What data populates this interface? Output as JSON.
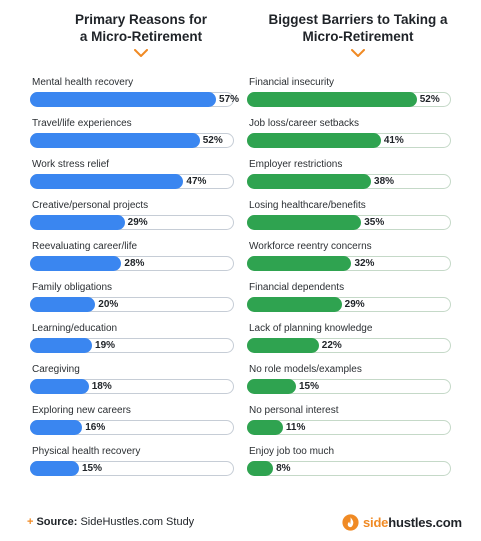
{
  "colors": {
    "left_bar": "#3a86f0",
    "right_bar": "#2fa350",
    "accent": "#f08a24"
  },
  "chart_data": [
    {
      "type": "bar",
      "orientation": "horizontal",
      "title": "Primary Reasons for\na Micro-Retirement",
      "categories": [
        "Mental health recovery",
        "Travel/life experiences",
        "Work stress relief",
        "Creative/personal projects",
        "Reevaluating career/life",
        "Family obligations",
        "Learning/education",
        "Caregiving",
        "Exploring new careers",
        "Physical health recovery"
      ],
      "values": [
        57,
        52,
        47,
        29,
        28,
        20,
        19,
        18,
        16,
        15
      ],
      "value_labels": [
        "57%",
        "52%",
        "47%",
        "29%",
        "28%",
        "20%",
        "19%",
        "18%",
        "16%",
        "15%"
      ],
      "xlim": [
        0,
        60
      ],
      "color": "#3a86f0"
    },
    {
      "type": "bar",
      "orientation": "horizontal",
      "title": "Biggest Barriers to Taking a\nMicro-Retirement",
      "categories": [
        "Financial insecurity",
        "Job loss/career setbacks",
        "Employer restrictions",
        "Losing healthcare/benefits",
        "Workforce reentry concerns",
        "Financial dependents",
        "Lack of planning knowledge",
        "No role models/examples",
        "No personal interest",
        "Enjoy job too much"
      ],
      "values": [
        52,
        41,
        38,
        35,
        32,
        29,
        22,
        15,
        11,
        8
      ],
      "value_labels": [
        "52%",
        "41%",
        "38%",
        "35%",
        "32%",
        "29%",
        "22%",
        "15%",
        "11%",
        "8%"
      ],
      "xlim": [
        0,
        60
      ],
      "color": "#2fa350"
    }
  ],
  "footer": {
    "source_label": "Source:",
    "source_text": "SideHustles.com Study",
    "logo_part1": "side",
    "logo_part2": "hustles.com"
  }
}
